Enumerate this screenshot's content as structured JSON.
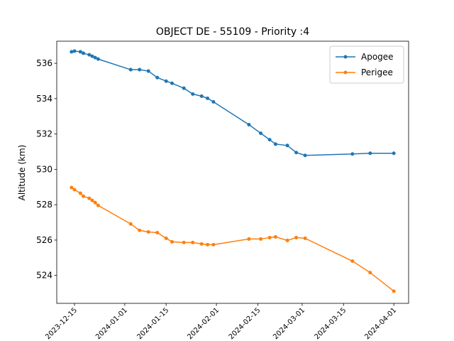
{
  "chart_data": {
    "type": "line",
    "title": "OBJECT DE - 55109 - Priority :4",
    "y_label": "Altitude (km)",
    "x": [
      "2023-12-14",
      "2023-12-15",
      "2023-12-17",
      "2023-12-18",
      "2023-12-20",
      "2023-12-21",
      "2023-12-22",
      "2023-12-23",
      "2024-01-03",
      "2024-01-06",
      "2024-01-09",
      "2024-01-12",
      "2024-01-15",
      "2024-01-17",
      "2024-01-21",
      "2024-01-24",
      "2024-01-27",
      "2024-01-29",
      "2024-01-31",
      "2024-02-12",
      "2024-02-16",
      "2024-02-19",
      "2024-02-21",
      "2024-02-25",
      "2024-02-28",
      "2024-03-02",
      "2024-03-18",
      "2024-03-24",
      "2024-04-01"
    ],
    "series": [
      {
        "name": "Apogee",
        "color": "#1f77b4",
        "values": [
          536.65,
          536.69,
          536.65,
          536.57,
          536.48,
          536.4,
          536.32,
          536.24,
          535.64,
          535.64,
          535.56,
          535.19,
          534.99,
          534.87,
          534.59,
          534.26,
          534.14,
          534.02,
          533.82,
          532.53,
          532.04,
          531.68,
          531.43,
          531.35,
          530.95,
          530.79,
          530.87,
          530.91,
          530.91
        ]
      },
      {
        "name": "Perigee",
        "color": "#ff7f0e",
        "values": [
          528.97,
          528.85,
          528.65,
          528.48,
          528.36,
          528.24,
          528.12,
          527.96,
          526.91,
          526.55,
          526.46,
          526.42,
          526.1,
          525.9,
          525.86,
          525.86,
          525.78,
          525.74,
          525.74,
          526.06,
          526.06,
          526.14,
          526.18,
          525.98,
          526.14,
          526.1,
          524.81,
          524.16,
          523.11
        ]
      }
    ],
    "xlim": [
      "2023-12-09",
      "2024-04-06"
    ],
    "xticks": [
      "2023-12-15",
      "2024-01-01",
      "2024-01-15",
      "2024-02-01",
      "2024-02-15",
      "2024-03-01",
      "2024-03-15",
      "2024-04-01"
    ],
    "ylim": [
      522.42,
      537.25
    ],
    "yticks": [
      524,
      526,
      528,
      530,
      532,
      534,
      536
    ],
    "legend": "upper right",
    "grid": false
  }
}
